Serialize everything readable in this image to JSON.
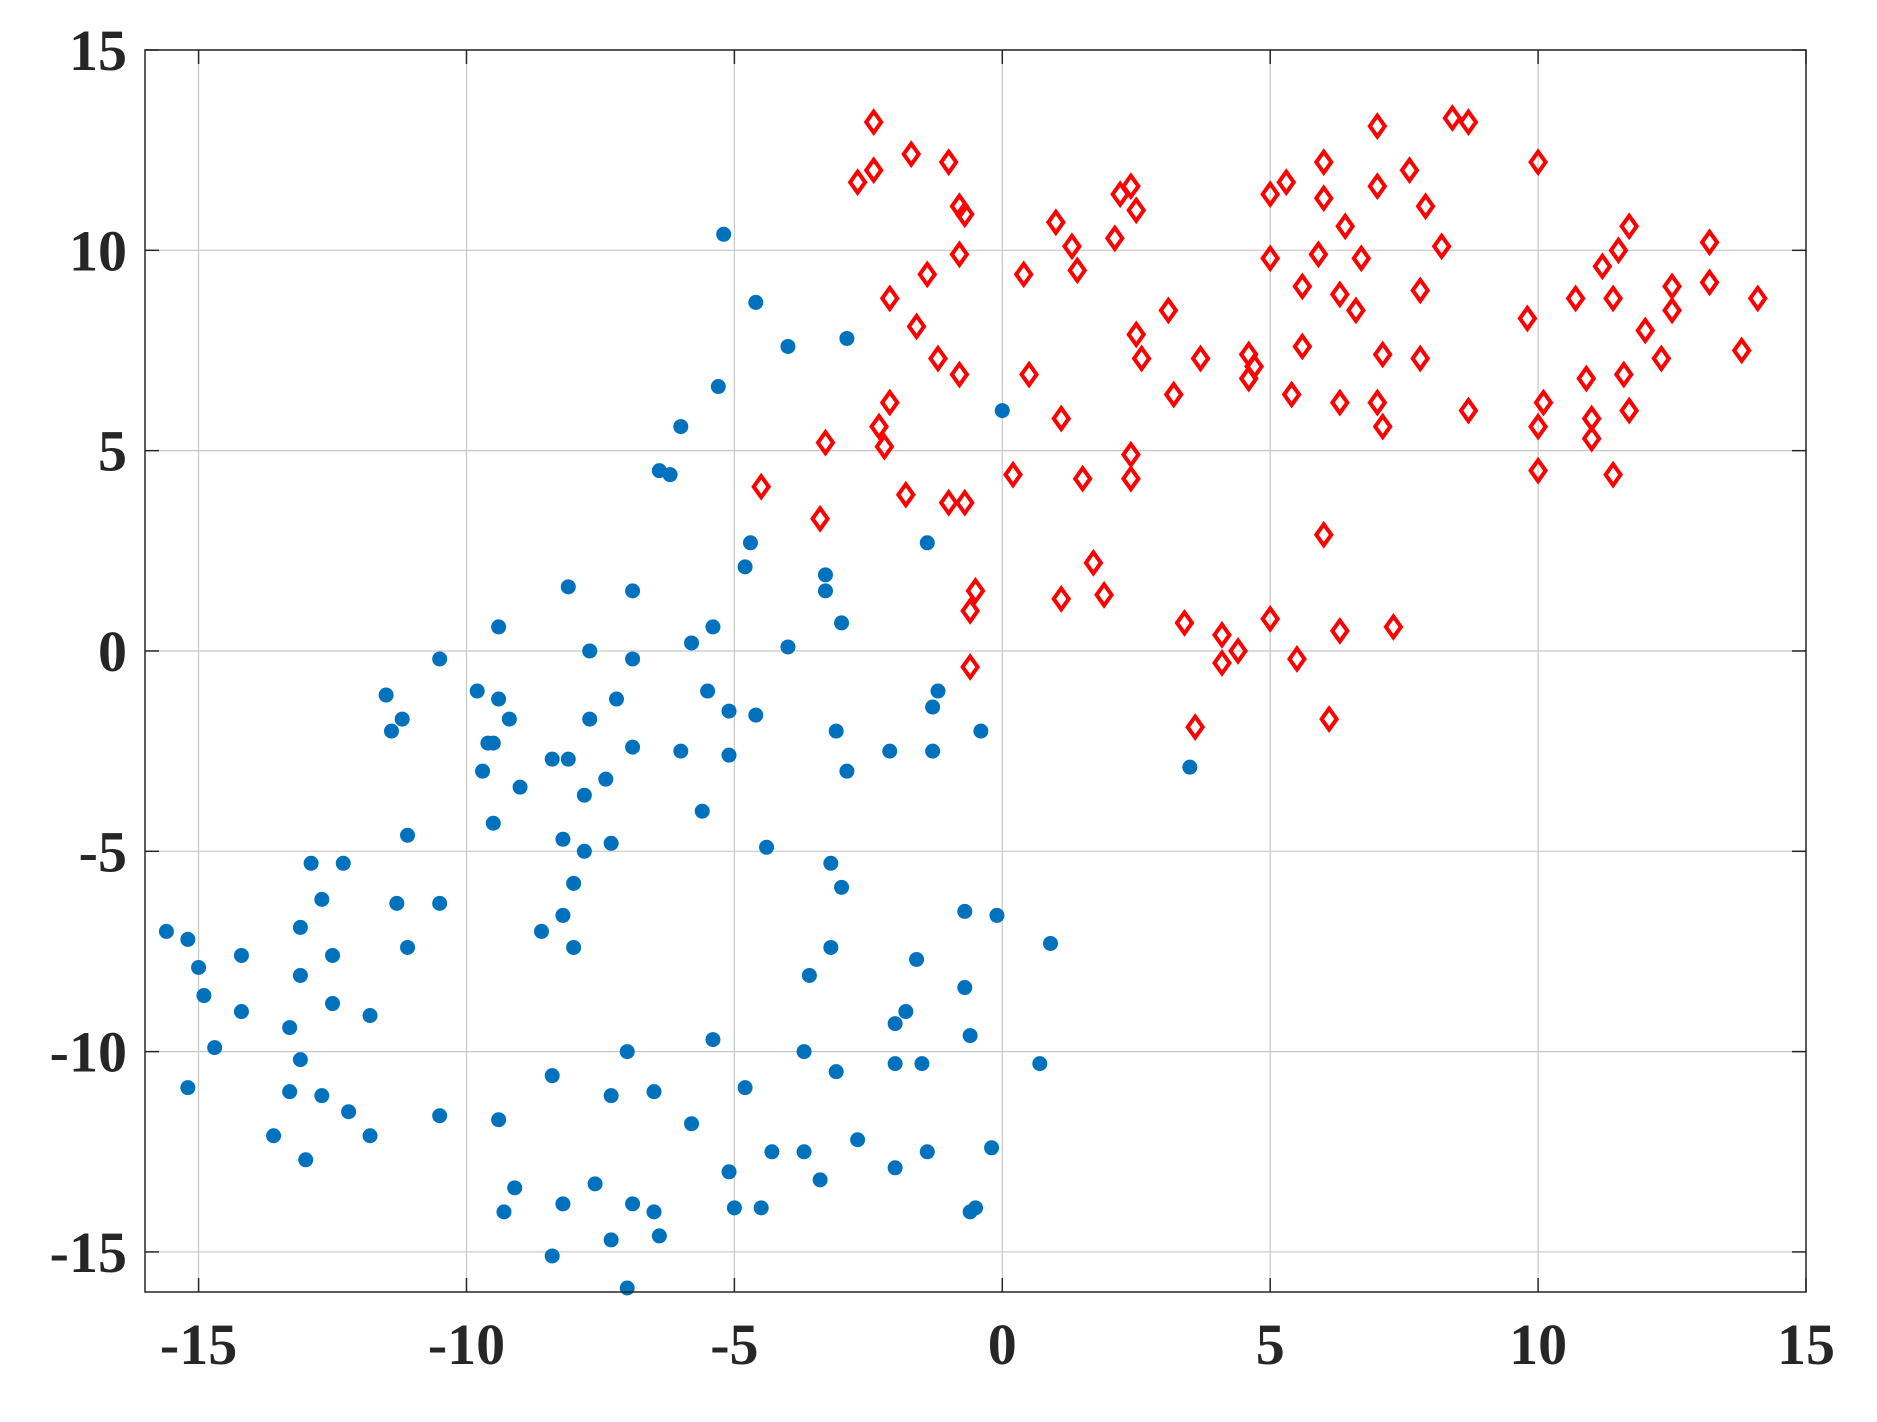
{
  "chart_data": {
    "type": "scatter",
    "title": "",
    "xlabel": "",
    "ylabel": "",
    "xlim": [
      -16,
      15
    ],
    "ylim": [
      -16,
      15
    ],
    "xticks": [
      -15,
      -10,
      -5,
      0,
      5,
      10,
      15
    ],
    "yticks": [
      -15,
      -10,
      -5,
      0,
      5,
      10,
      15
    ],
    "xtick_labels": [
      "-15",
      "-10",
      "-5",
      "0",
      "5",
      "10",
      "15"
    ],
    "ytick_labels": [
      "-15",
      "-10",
      "-5",
      "0",
      "5",
      "10",
      "15"
    ],
    "grid": true,
    "legend": "none",
    "series": [
      {
        "marker": "filled-circle",
        "color": "#0072BD",
        "points": [
          [
            -5.2,
            10.4
          ],
          [
            -4.6,
            8.7
          ],
          [
            -4.0,
            7.6
          ],
          [
            -2.9,
            7.8
          ],
          [
            -5.3,
            6.6
          ],
          [
            -6.0,
            5.6
          ],
          [
            -6.4,
            4.5
          ],
          [
            -6.2,
            4.4
          ],
          [
            0.0,
            6.0
          ],
          [
            -4.7,
            2.7
          ],
          [
            -4.8,
            2.1
          ],
          [
            -3.3,
            1.9
          ],
          [
            -3.3,
            1.5
          ],
          [
            -1.4,
            2.7
          ],
          [
            -8.1,
            1.6
          ],
          [
            -6.9,
            1.5
          ],
          [
            -9.4,
            0.6
          ],
          [
            -5.4,
            0.6
          ],
          [
            -3.0,
            0.7
          ],
          [
            -5.8,
            0.2
          ],
          [
            -4.0,
            0.1
          ],
          [
            -7.7,
            0.0
          ],
          [
            -6.9,
            -0.2
          ],
          [
            -10.5,
            -0.2
          ],
          [
            -9.8,
            -1.0
          ],
          [
            -5.5,
            -1.0
          ],
          [
            -1.2,
            -1.0
          ],
          [
            -11.5,
            -1.1
          ],
          [
            -9.4,
            -1.2
          ],
          [
            -7.2,
            -1.2
          ],
          [
            -5.1,
            -1.5
          ],
          [
            -4.6,
            -1.6
          ],
          [
            -1.3,
            -1.4
          ],
          [
            -7.7,
            -1.7
          ],
          [
            -11.2,
            -1.7
          ],
          [
            -9.2,
            -1.7
          ],
          [
            -11.4,
            -2.0
          ],
          [
            -3.1,
            -2.0
          ],
          [
            -0.4,
            -2.0
          ],
          [
            -9.6,
            -2.3
          ],
          [
            -9.5,
            -2.3
          ],
          [
            -6.9,
            -2.4
          ],
          [
            -6.0,
            -2.5
          ],
          [
            -2.1,
            -2.5
          ],
          [
            -1.3,
            -2.5
          ],
          [
            -5.1,
            -2.6
          ],
          [
            -8.1,
            -2.7
          ],
          [
            -8.4,
            -2.7
          ],
          [
            -9.7,
            -3.0
          ],
          [
            -2.9,
            -3.0
          ],
          [
            3.5,
            -2.9
          ],
          [
            -7.4,
            -3.2
          ],
          [
            -9.0,
            -3.4
          ],
          [
            -7.8,
            -3.6
          ],
          [
            -5.6,
            -4.0
          ],
          [
            -9.5,
            -4.3
          ],
          [
            -11.1,
            -4.6
          ],
          [
            -8.2,
            -4.7
          ],
          [
            -7.3,
            -4.8
          ],
          [
            -7.8,
            -5.0
          ],
          [
            -4.4,
            -4.9
          ],
          [
            -12.9,
            -5.3
          ],
          [
            -12.3,
            -5.3
          ],
          [
            -3.2,
            -5.3
          ],
          [
            -8.0,
            -5.8
          ],
          [
            -3.0,
            -5.9
          ],
          [
            -12.7,
            -6.2
          ],
          [
            -11.3,
            -6.3
          ],
          [
            -10.5,
            -6.3
          ],
          [
            -0.7,
            -6.5
          ],
          [
            -0.1,
            -6.6
          ],
          [
            -8.2,
            -6.6
          ],
          [
            -15.6,
            -7.0
          ],
          [
            -13.1,
            -6.9
          ],
          [
            -8.6,
            -7.0
          ],
          [
            -15.2,
            -7.2
          ],
          [
            0.9,
            -7.3
          ],
          [
            -3.2,
            -7.4
          ],
          [
            -11.1,
            -7.4
          ],
          [
            -8.0,
            -7.4
          ],
          [
            -12.5,
            -7.6
          ],
          [
            -14.2,
            -7.6
          ],
          [
            -1.6,
            -7.7
          ],
          [
            -15.0,
            -7.9
          ],
          [
            -13.1,
            -8.1
          ],
          [
            -3.6,
            -8.1
          ],
          [
            -0.7,
            -8.4
          ],
          [
            -14.9,
            -8.6
          ],
          [
            -12.5,
            -8.8
          ],
          [
            -1.8,
            -9.0
          ],
          [
            -14.2,
            -9.0
          ],
          [
            -11.8,
            -9.1
          ],
          [
            -2.0,
            -9.3
          ],
          [
            -13.3,
            -9.4
          ],
          [
            -0.6,
            -9.6
          ],
          [
            -5.4,
            -9.7
          ],
          [
            -14.7,
            -9.9
          ],
          [
            -7.0,
            -10.0
          ],
          [
            -3.7,
            -10.0
          ],
          [
            -13.1,
            -10.2
          ],
          [
            -2.0,
            -10.3
          ],
          [
            -1.5,
            -10.3
          ],
          [
            0.7,
            -10.3
          ],
          [
            -3.1,
            -10.5
          ],
          [
            -8.4,
            -10.6
          ],
          [
            -4.8,
            -10.9
          ],
          [
            -15.2,
            -10.9
          ],
          [
            -13.3,
            -11.0
          ],
          [
            -6.5,
            -11.0
          ],
          [
            -7.3,
            -11.1
          ],
          [
            -12.7,
            -11.1
          ],
          [
            -12.2,
            -11.5
          ],
          [
            -10.5,
            -11.6
          ],
          [
            -9.4,
            -11.7
          ],
          [
            -5.8,
            -11.8
          ],
          [
            -11.8,
            -12.1
          ],
          [
            -13.6,
            -12.1
          ],
          [
            -2.7,
            -12.2
          ],
          [
            -0.2,
            -12.4
          ],
          [
            -4.3,
            -12.5
          ],
          [
            -3.7,
            -12.5
          ],
          [
            -1.4,
            -12.5
          ],
          [
            -13.0,
            -12.7
          ],
          [
            -2.0,
            -12.9
          ],
          [
            -5.1,
            -13.0
          ],
          [
            -3.4,
            -13.2
          ],
          [
            -7.6,
            -13.3
          ],
          [
            -9.1,
            -13.4
          ],
          [
            -8.2,
            -13.8
          ],
          [
            -6.9,
            -13.8
          ],
          [
            -5.0,
            -13.9
          ],
          [
            -4.5,
            -13.9
          ],
          [
            -0.5,
            -13.9
          ],
          [
            -0.6,
            -14.0
          ],
          [
            -6.5,
            -14.0
          ],
          [
            -9.3,
            -14.0
          ],
          [
            -7.3,
            -14.7
          ],
          [
            -6.4,
            -14.6
          ],
          [
            -8.4,
            -15.1
          ],
          [
            -7.0,
            -15.9
          ]
        ]
      },
      {
        "marker": "open-diamond",
        "color": "#FF0000",
        "points": [
          [
            -2.4,
            13.2
          ],
          [
            -1.7,
            12.4
          ],
          [
            -1.0,
            12.2
          ],
          [
            -2.4,
            12.0
          ],
          [
            -2.7,
            11.7
          ],
          [
            -0.8,
            11.1
          ],
          [
            -0.7,
            10.9
          ],
          [
            -0.8,
            9.9
          ],
          [
            -1.4,
            9.4
          ],
          [
            -2.1,
            8.8
          ],
          [
            -1.6,
            8.1
          ],
          [
            -1.2,
            7.3
          ],
          [
            -0.8,
            6.9
          ],
          [
            -2.1,
            6.2
          ],
          [
            -2.3,
            5.6
          ],
          [
            -2.2,
            5.1
          ],
          [
            -3.3,
            5.2
          ],
          [
            -4.5,
            4.1
          ],
          [
            -3.4,
            3.3
          ],
          [
            -1.8,
            3.9
          ],
          [
            -1.0,
            3.7
          ],
          [
            -0.7,
            3.7
          ],
          [
            0.2,
            4.4
          ],
          [
            -0.5,
            1.5
          ],
          [
            -0.6,
            1.0
          ],
          [
            -0.6,
            -0.4
          ],
          [
            0.4,
            9.4
          ],
          [
            0.5,
            6.9
          ],
          [
            1.0,
            10.7
          ],
          [
            1.3,
            10.1
          ],
          [
            1.4,
            9.5
          ],
          [
            1.1,
            5.8
          ],
          [
            1.5,
            4.3
          ],
          [
            1.7,
            2.2
          ],
          [
            1.1,
            1.3
          ],
          [
            1.9,
            1.4
          ],
          [
            2.1,
            10.3
          ],
          [
            2.2,
            11.4
          ],
          [
            2.4,
            11.6
          ],
          [
            2.5,
            11.0
          ],
          [
            2.5,
            7.9
          ],
          [
            2.6,
            7.3
          ],
          [
            2.4,
            4.9
          ],
          [
            2.4,
            4.3
          ],
          [
            3.1,
            8.5
          ],
          [
            3.2,
            6.4
          ],
          [
            3.4,
            0.7
          ],
          [
            3.6,
            -1.9
          ],
          [
            3.7,
            7.3
          ],
          [
            4.1,
            0.4
          ],
          [
            4.1,
            -0.3
          ],
          [
            4.4,
            0.0
          ],
          [
            4.6,
            7.4
          ],
          [
            4.6,
            6.8
          ],
          [
            4.7,
            7.1
          ],
          [
            5.0,
            11.4
          ],
          [
            5.3,
            11.7
          ],
          [
            5.0,
            9.8
          ],
          [
            5.6,
            9.1
          ],
          [
            5.6,
            7.6
          ],
          [
            5.4,
            6.4
          ],
          [
            5.0,
            0.8
          ],
          [
            5.5,
            -0.2
          ],
          [
            6.0,
            12.2
          ],
          [
            6.0,
            11.3
          ],
          [
            5.9,
            9.9
          ],
          [
            6.4,
            10.6
          ],
          [
            6.3,
            8.9
          ],
          [
            6.6,
            8.5
          ],
          [
            6.7,
            9.8
          ],
          [
            6.3,
            6.2
          ],
          [
            6.0,
            2.9
          ],
          [
            6.3,
            0.5
          ],
          [
            6.1,
            -1.7
          ],
          [
            7.0,
            13.1
          ],
          [
            7.0,
            11.6
          ],
          [
            7.0,
            6.2
          ],
          [
            7.1,
            5.6
          ],
          [
            7.1,
            7.4
          ],
          [
            7.3,
            0.6
          ],
          [
            7.6,
            12.0
          ],
          [
            7.9,
            11.1
          ],
          [
            7.8,
            9.0
          ],
          [
            7.8,
            7.3
          ],
          [
            8.2,
            10.1
          ],
          [
            8.4,
            13.3
          ],
          [
            8.7,
            13.2
          ],
          [
            8.7,
            6.0
          ],
          [
            10.0,
            12.2
          ],
          [
            9.8,
            8.3
          ],
          [
            10.0,
            5.6
          ],
          [
            10.1,
            6.2
          ],
          [
            10.0,
            4.5
          ],
          [
            10.7,
            8.8
          ],
          [
            10.9,
            6.8
          ],
          [
            11.0,
            5.8
          ],
          [
            11.0,
            5.3
          ],
          [
            11.2,
            9.6
          ],
          [
            11.4,
            4.4
          ],
          [
            11.5,
            10.0
          ],
          [
            11.4,
            8.8
          ],
          [
            11.7,
            10.6
          ],
          [
            11.6,
            6.9
          ],
          [
            11.7,
            6.0
          ],
          [
            12.0,
            8.0
          ],
          [
            12.3,
            7.3
          ],
          [
            12.5,
            9.1
          ],
          [
            12.5,
            8.5
          ],
          [
            13.2,
            10.2
          ],
          [
            13.2,
            9.2
          ],
          [
            13.8,
            7.5
          ],
          [
            14.1,
            8.8
          ]
        ]
      }
    ]
  }
}
